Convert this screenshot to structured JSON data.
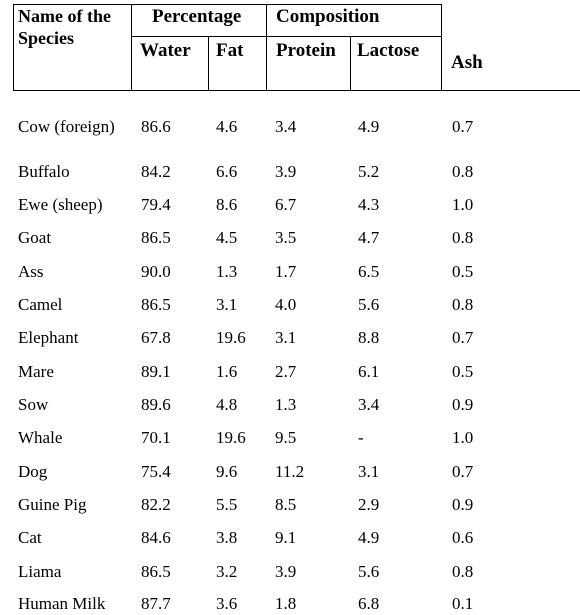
{
  "header": {
    "species": "Name of the Species",
    "percentage": "Percentage",
    "composition": "Composition",
    "water": "Water",
    "fat": "Fat",
    "protein": "Protein",
    "lactose": "Lactose",
    "ash": "Ash"
  },
  "rows": [
    {
      "species": "Cow (foreign)",
      "water": "86.6",
      "fat": "4.6",
      "protein": "3.4",
      "lactose": "4.9",
      "ash": "0.7"
    },
    {
      "species": "Buffalo",
      "water": "84.2",
      "fat": "6.6",
      "protein": "3.9",
      "lactose": "5.2",
      "ash": "0.8"
    },
    {
      "species": "Ewe (sheep)",
      "water": "79.4",
      "fat": "8.6",
      "protein": "6.7",
      "lactose": "4.3",
      "ash": "1.0"
    },
    {
      "species": "Goat",
      "water": "86.5",
      "fat": "4.5",
      "protein": "3.5",
      "lactose": "4.7",
      "ash": "0.8"
    },
    {
      "species": "Ass",
      "water": "90.0",
      "fat": "1.3",
      "protein": "1.7",
      "lactose": "6.5",
      "ash": "0.5"
    },
    {
      "species": "Camel",
      "water": "86.5",
      "fat": "3.1",
      "protein": "4.0",
      "lactose": "5.6",
      "ash": "0.8"
    },
    {
      "species": "Elephant",
      "water": "67.8",
      "fat": "19.6",
      "protein": "3.1",
      "lactose": "8.8",
      "ash": "0.7"
    },
    {
      "species": "Mare",
      "water": "89.1",
      "fat": "1.6",
      "protein": "2.7",
      "lactose": "6.1",
      "ash": "0.5"
    },
    {
      "species": "Sow",
      "water": "89.6",
      "fat": "4.8",
      "protein": "1.3",
      "lactose": "3.4",
      "ash": "0.9"
    },
    {
      "species": "Whale",
      "water": "70.1",
      "fat": "19.6",
      "protein": "9.5",
      "lactose": "-",
      "ash": "1.0"
    },
    {
      "species": "Dog",
      "water": "75.4",
      "fat": "9.6",
      "protein": "11.2",
      "lactose": "3.1",
      "ash": "0.7"
    },
    {
      "species": "Guine Pig",
      "water": "82.2",
      "fat": "5.5",
      "protein": "8.5",
      "lactose": "2.9",
      "ash": "0.9"
    },
    {
      "species": "Cat",
      "water": "84.6",
      "fat": "3.8",
      "protein": "9.1",
      "lactose": "4.9",
      "ash": "0.6"
    },
    {
      "species": "Liama",
      "water": "86.5",
      "fat": "3.2",
      "protein": "3.9",
      "lactose": "5.6",
      "ash": "0.8"
    },
    {
      "species": "Human Milk",
      "water": "87.7",
      "fat": "3.6",
      "protein": "1.8",
      "lactose": "6.8",
      "ash": "0.1"
    }
  ]
}
